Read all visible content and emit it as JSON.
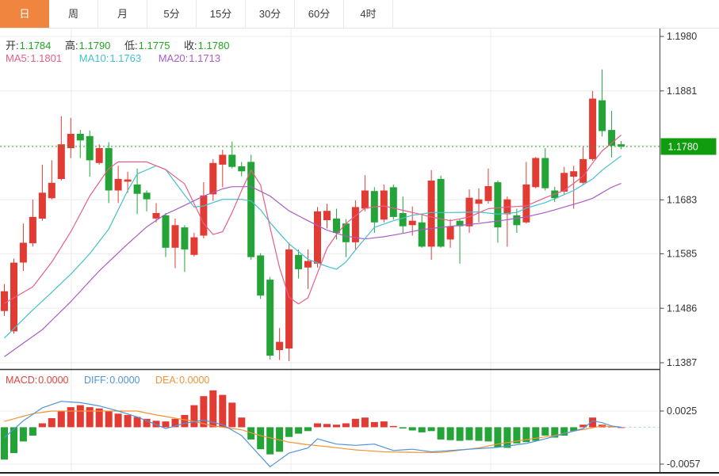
{
  "tabs": {
    "items": [
      {
        "label": "日",
        "active": true
      },
      {
        "label": "周",
        "active": false
      },
      {
        "label": "月",
        "active": false
      },
      {
        "label": "5分",
        "active": false
      },
      {
        "label": "15分",
        "active": false
      },
      {
        "label": "30分",
        "active": false
      },
      {
        "label": "60分",
        "active": false
      },
      {
        "label": "4时",
        "active": false
      }
    ]
  },
  "legend": {
    "open_label": "开:",
    "open_value": "1.1784",
    "high_label": "高:",
    "high_value": "1.1790",
    "low_label": "低:",
    "low_value": "1.1775",
    "close_label": "收:",
    "close_value": "1.1780",
    "ma5_label": "MA5:",
    "ma5_value": "1.1801",
    "ma10_label": "MA10:",
    "ma10_value": "1.1763",
    "ma20_label": "MA20:",
    "ma20_value": "1.1713"
  },
  "macd_legend": {
    "macd_label": "MACD:",
    "macd_value": "0.0000",
    "diff_label": "DIFF:",
    "diff_value": "0.0000",
    "dea_label": "DEA:",
    "dea_value": "0.0000"
  },
  "price_tag": "1.1780",
  "colors": {
    "accent_orange": "#f0853f",
    "up_red": "#e23b34",
    "down_green": "#23a338",
    "ohlc_label": "#333333",
    "ohlc_value_green": "#21a621",
    "ma5_pink": "#e75e86",
    "ma10_cyan": "#45c0cf",
    "ma20_purple": "#a95cc4",
    "macd_red": "#e0443c",
    "diff_blue": "#5094d8",
    "dea_orange": "#f09437",
    "price_tag_green": "#0f9d0f",
    "price_line_green": "#2aa52a",
    "zero_dash_blue": "#a8d4e6",
    "axis_text": "#333333",
    "axis_line": "#444444",
    "grid": "#ececec"
  },
  "chart_data": {
    "type": "candlestick+macd",
    "main": {
      "y_axis_labels": [
        1.198,
        1.1881,
        1.1683,
        1.1585,
        1.1486,
        1.1387
      ],
      "gridline_prices": [
        1.198,
        1.1881,
        1.1782,
        1.1683,
        1.1585,
        1.1486,
        1.1387
      ],
      "y_top": 1.198,
      "y_bottom": 1.1387,
      "current_price": 1.178,
      "last_candle": {
        "open": 1.1784,
        "high": 1.179,
        "low": 1.1775,
        "close": 1.178
      },
      "ma_current": {
        "ma5": 1.1801,
        "ma10": 1.1763,
        "ma20": 1.1713
      },
      "candles": [
        [
          1.1481,
          1.153,
          1.1472,
          1.1517
        ],
        [
          1.1444,
          1.1576,
          1.144,
          1.1569
        ],
        [
          1.1569,
          1.164,
          1.1554,
          1.1605
        ],
        [
          1.1604,
          1.1684,
          1.1598,
          1.1652
        ],
        [
          1.1649,
          1.1747,
          1.1645,
          1.1696
        ],
        [
          1.1686,
          1.1755,
          1.1684,
          1.1714
        ],
        [
          1.1721,
          1.1835,
          1.1718,
          1.1784
        ],
        [
          1.1777,
          1.1832,
          1.1759,
          1.1803
        ],
        [
          1.1803,
          1.181,
          1.1759,
          1.1791
        ],
        [
          1.1799,
          1.1809,
          1.1725,
          1.1755
        ],
        [
          1.175,
          1.1784,
          1.1747,
          1.1777
        ],
        [
          1.1777,
          1.1788,
          1.1677,
          1.17
        ],
        [
          1.17,
          1.1745,
          1.1677,
          1.1721
        ],
        [
          1.1716,
          1.1734,
          1.1696,
          1.172
        ],
        [
          1.1711,
          1.174,
          1.1657,
          1.1694
        ],
        [
          1.1696,
          1.17,
          1.1662,
          1.1684
        ],
        [
          1.1649,
          1.1677,
          1.1642,
          1.1659
        ],
        [
          1.1655,
          1.1659,
          1.1579,
          1.1596
        ],
        [
          1.1596,
          1.1649,
          1.1559,
          1.1637
        ],
        [
          1.1633,
          1.1637,
          1.1552,
          1.1593
        ],
        [
          1.1583,
          1.1623,
          1.158,
          1.1615
        ],
        [
          1.1618,
          1.1715,
          1.1613,
          1.1691
        ],
        [
          1.1693,
          1.1757,
          1.1681,
          1.175
        ],
        [
          1.1747,
          1.1774,
          1.1706,
          1.1765
        ],
        [
          1.1765,
          1.1789,
          1.174,
          1.1743
        ],
        [
          1.1744,
          1.1752,
          1.1726,
          1.1735
        ],
        [
          1.1752,
          1.1765,
          1.1574,
          1.1579
        ],
        [
          1.1582,
          1.1586,
          1.1503,
          1.1509
        ],
        [
          1.1538,
          1.1543,
          1.1393,
          1.14
        ],
        [
          1.141,
          1.145,
          1.1392,
          1.1425
        ],
        [
          1.1413,
          1.1605,
          1.139,
          1.1593
        ],
        [
          1.1583,
          1.1593,
          1.154,
          1.1557
        ],
        [
          1.156,
          1.1593,
          1.1521,
          1.1572
        ],
        [
          1.1567,
          1.167,
          1.156,
          1.1662
        ],
        [
          1.1646,
          1.1676,
          1.1631,
          1.1663
        ],
        [
          1.1649,
          1.1667,
          1.1611,
          1.1623
        ],
        [
          1.164,
          1.1648,
          1.1579,
          1.1606
        ],
        [
          1.1606,
          1.1682,
          1.1593,
          1.167
        ],
        [
          1.1667,
          1.1728,
          1.1662,
          1.17
        ],
        [
          1.1699,
          1.1706,
          1.1623,
          1.1642
        ],
        [
          1.1647,
          1.1711,
          1.1642,
          1.17
        ],
        [
          1.1706,
          1.1711,
          1.1647,
          1.1652
        ],
        [
          1.1659,
          1.1689,
          1.1623,
          1.1635
        ],
        [
          1.1637,
          1.1671,
          1.1618,
          1.1645
        ],
        [
          1.1642,
          1.1655,
          1.1596,
          1.1598
        ],
        [
          1.1598,
          1.1737,
          1.1574,
          1.1718
        ],
        [
          1.1721,
          1.1727,
          1.1596,
          1.1598
        ],
        [
          1.1611,
          1.1648,
          1.1596,
          1.1635
        ],
        [
          1.1645,
          1.1648,
          1.1567,
          1.1635
        ],
        [
          1.1635,
          1.1702,
          1.1623,
          1.1687
        ],
        [
          1.1676,
          1.1704,
          1.1642,
          1.1684
        ],
        [
          1.1681,
          1.174,
          1.1676,
          1.1708
        ],
        [
          1.1715,
          1.1718,
          1.1605,
          1.1633
        ],
        [
          1.1657,
          1.1689,
          1.1598,
          1.1684
        ],
        [
          1.1655,
          1.1667,
          1.1623,
          1.1637
        ],
        [
          1.1642,
          1.1752,
          1.164,
          1.1711
        ],
        [
          1.1706,
          1.1761,
          1.1704,
          1.1759
        ],
        [
          1.1759,
          1.1777,
          1.17,
          1.1704
        ],
        [
          1.17,
          1.1707,
          1.1679,
          1.1686
        ],
        [
          1.1698,
          1.1743,
          1.1693,
          1.1732
        ],
        [
          1.1725,
          1.1745,
          1.1667,
          1.1735
        ],
        [
          1.1714,
          1.1779,
          1.1711,
          1.1757
        ],
        [
          1.1757,
          1.1881,
          1.1754,
          1.1867
        ],
        [
          1.1864,
          1.192,
          1.1798,
          1.1808
        ],
        [
          1.181,
          1.1845,
          1.176,
          1.1781
        ],
        [
          1.1784,
          1.179,
          1.1775,
          1.178
        ]
      ],
      "ma5_anchors": [
        [
          0,
          1.1495
        ],
        [
          3,
          1.1525
        ],
        [
          5,
          1.157
        ],
        [
          7,
          1.1625
        ],
        [
          9,
          1.169
        ],
        [
          11,
          1.174
        ],
        [
          12,
          1.1752
        ],
        [
          15,
          1.1752
        ],
        [
          17,
          1.1738
        ],
        [
          19,
          1.1712
        ],
        [
          21,
          1.164
        ],
        [
          22,
          1.162
        ],
        [
          23,
          1.1625
        ],
        [
          24,
          1.166
        ],
        [
          25,
          1.17
        ],
        [
          26,
          1.1737
        ],
        [
          27,
          1.171
        ],
        [
          28,
          1.1633
        ],
        [
          29,
          1.156
        ],
        [
          30,
          1.1506
        ],
        [
          31,
          1.1494
        ],
        [
          32,
          1.1505
        ],
        [
          33,
          1.155
        ],
        [
          34,
          1.1595
        ],
        [
          35,
          1.162
        ],
        [
          36,
          1.164
        ],
        [
          38,
          1.1668
        ],
        [
          40,
          1.1672
        ],
        [
          43,
          1.166
        ],
        [
          45,
          1.1652
        ],
        [
          47,
          1.1645
        ],
        [
          49,
          1.1652
        ],
        [
          51,
          1.1667
        ],
        [
          53,
          1.167
        ],
        [
          55,
          1.1672
        ],
        [
          57,
          1.1687
        ],
        [
          59,
          1.17
        ],
        [
          61,
          1.1726
        ],
        [
          62,
          1.175
        ],
        [
          63,
          1.1772
        ],
        [
          64,
          1.1786
        ],
        [
          65,
          1.1801
        ]
      ],
      "ma10_anchors": [
        [
          0,
          1.1432
        ],
        [
          3,
          1.1483
        ],
        [
          5,
          1.1515
        ],
        [
          7,
          1.1548
        ],
        [
          9,
          1.1585
        ],
        [
          11,
          1.163
        ],
        [
          13,
          1.17
        ],
        [
          14,
          1.173
        ],
        [
          16,
          1.1745
        ],
        [
          17,
          1.1738
        ],
        [
          18,
          1.1715
        ],
        [
          19,
          1.1692
        ],
        [
          20,
          1.167
        ],
        [
          21,
          1.1672
        ],
        [
          23,
          1.1684
        ],
        [
          25,
          1.1684
        ],
        [
          26,
          1.1681
        ],
        [
          27,
          1.1665
        ],
        [
          28,
          1.1642
        ],
        [
          29,
          1.1622
        ],
        [
          30,
          1.1603
        ],
        [
          32,
          1.1575
        ],
        [
          34,
          1.1562
        ],
        [
          35,
          1.1557
        ],
        [
          36,
          1.157
        ],
        [
          37,
          1.1592
        ],
        [
          39,
          1.1633
        ],
        [
          41,
          1.1645
        ],
        [
          43,
          1.1655
        ],
        [
          45,
          1.166
        ],
        [
          47,
          1.166
        ],
        [
          50,
          1.1661
        ],
        [
          52,
          1.1657
        ],
        [
          54,
          1.166
        ],
        [
          55,
          1.1668
        ],
        [
          57,
          1.1678
        ],
        [
          58,
          1.1685
        ],
        [
          60,
          1.17
        ],
        [
          62,
          1.1721
        ],
        [
          63,
          1.1737
        ],
        [
          64,
          1.175
        ],
        [
          65,
          1.1763
        ]
      ],
      "ma20_anchors": [
        [
          0,
          1.1398
        ],
        [
          4,
          1.1447
        ],
        [
          7,
          1.1498
        ],
        [
          10,
          1.1554
        ],
        [
          13,
          1.1603
        ],
        [
          15,
          1.1634
        ],
        [
          17,
          1.1657
        ],
        [
          19,
          1.1673
        ],
        [
          21,
          1.169
        ],
        [
          23,
          1.1703
        ],
        [
          24,
          1.1707
        ],
        [
          26,
          1.1707
        ],
        [
          28,
          1.169
        ],
        [
          30,
          1.1663
        ],
        [
          32,
          1.1645
        ],
        [
          34,
          1.1628
        ],
        [
          36,
          1.1617
        ],
        [
          38,
          1.1612
        ],
        [
          40,
          1.1616
        ],
        [
          42,
          1.1622
        ],
        [
          44,
          1.1629
        ],
        [
          47,
          1.1635
        ],
        [
          50,
          1.164
        ],
        [
          53,
          1.1647
        ],
        [
          55,
          1.1652
        ],
        [
          57,
          1.166
        ],
        [
          59,
          1.167
        ],
        [
          61,
          1.168
        ],
        [
          62,
          1.1686
        ],
        [
          63,
          1.1696
        ],
        [
          64,
          1.1706
        ],
        [
          65,
          1.1713
        ]
      ]
    },
    "macd": {
      "y_axis_labels": [
        0.0025,
        -0.0057
      ],
      "histogram": [
        -0.005,
        -0.004,
        -0.0022,
        -0.0013,
        0.0006,
        0.0014,
        0.0025,
        0.0031,
        0.0034,
        0.0031,
        0.0029,
        0.0025,
        0.0021,
        0.0019,
        0.0016,
        0.0013,
        0.001,
        0.0009,
        0.0013,
        0.0019,
        0.0034,
        0.0048,
        0.0057,
        0.005,
        0.0038,
        0.0015,
        -0.0019,
        -0.0034,
        -0.0042,
        -0.0038,
        -0.0015,
        -0.001,
        -0.0006,
        0.0006,
        0.0005,
        0.0004,
        0.0006,
        0.0013,
        0.0015,
        0.0008,
        0.0009,
        0.0002,
        -0.0002,
        -0.0005,
        -0.0008,
        -0.0006,
        -0.0019,
        -0.002,
        -0.0021,
        -0.002,
        -0.0021,
        -0.0022,
        -0.0031,
        -0.0032,
        -0.0025,
        -0.0023,
        -0.0021,
        -0.0013,
        -0.0016,
        -0.0013,
        -0.0006,
        0.0004,
        0.0015,
        0.0004,
        0.0001,
        0.0
      ],
      "diff_anchors": [
        [
          0,
          -0.0016
        ],
        [
          2,
          0.001
        ],
        [
          4,
          0.003
        ],
        [
          6,
          0.004
        ],
        [
          8,
          0.0038
        ],
        [
          10,
          0.0033
        ],
        [
          12,
          0.0025
        ],
        [
          14,
          0.0016
        ],
        [
          16,
          0.0004
        ],
        [
          17,
          -0.0002
        ],
        [
          19,
          0.0006
        ],
        [
          21,
          0.0011
        ],
        [
          23,
          0.0004
        ],
        [
          25,
          -0.0013
        ],
        [
          27,
          -0.0045
        ],
        [
          28,
          -0.0061
        ],
        [
          30,
          -0.004
        ],
        [
          32,
          -0.0032
        ],
        [
          33,
          -0.0018
        ],
        [
          35,
          -0.0026
        ],
        [
          37,
          -0.0028
        ],
        [
          39,
          -0.0026
        ],
        [
          41,
          -0.0036
        ],
        [
          43,
          -0.0034
        ],
        [
          45,
          -0.0038
        ],
        [
          47,
          -0.0036
        ],
        [
          49,
          -0.0034
        ],
        [
          52,
          -0.0031
        ],
        [
          55,
          -0.0025
        ],
        [
          57,
          -0.0018
        ],
        [
          59,
          -0.001
        ],
        [
          61,
          -0.0002
        ],
        [
          62,
          0.001
        ],
        [
          63,
          0.0007
        ],
        [
          64,
          0.0002
        ],
        [
          65,
          0.0
        ]
      ],
      "dea_anchors": [
        [
          0,
          0.0009
        ],
        [
          3,
          0.0021
        ],
        [
          5,
          0.0025
        ],
        [
          14,
          0.0025
        ],
        [
          16,
          0.0019
        ],
        [
          20,
          0.0009
        ],
        [
          22,
          0.0002
        ],
        [
          25,
          -0.0004
        ],
        [
          27,
          -0.0013
        ],
        [
          30,
          -0.0023
        ],
        [
          32,
          -0.0027
        ],
        [
          34,
          -0.003
        ],
        [
          37,
          -0.0035
        ],
        [
          40,
          -0.0038
        ],
        [
          44,
          -0.0039
        ],
        [
          46,
          -0.0039
        ],
        [
          50,
          -0.0032
        ],
        [
          52,
          -0.0026
        ],
        [
          55,
          -0.0019
        ],
        [
          58,
          -0.0013
        ],
        [
          60,
          -0.0006
        ],
        [
          62,
          -0.0001
        ],
        [
          63,
          0.0002
        ],
        [
          65,
          0.0
        ]
      ]
    },
    "vertical_gridlines_x": [
      90,
      367,
      619
    ]
  }
}
